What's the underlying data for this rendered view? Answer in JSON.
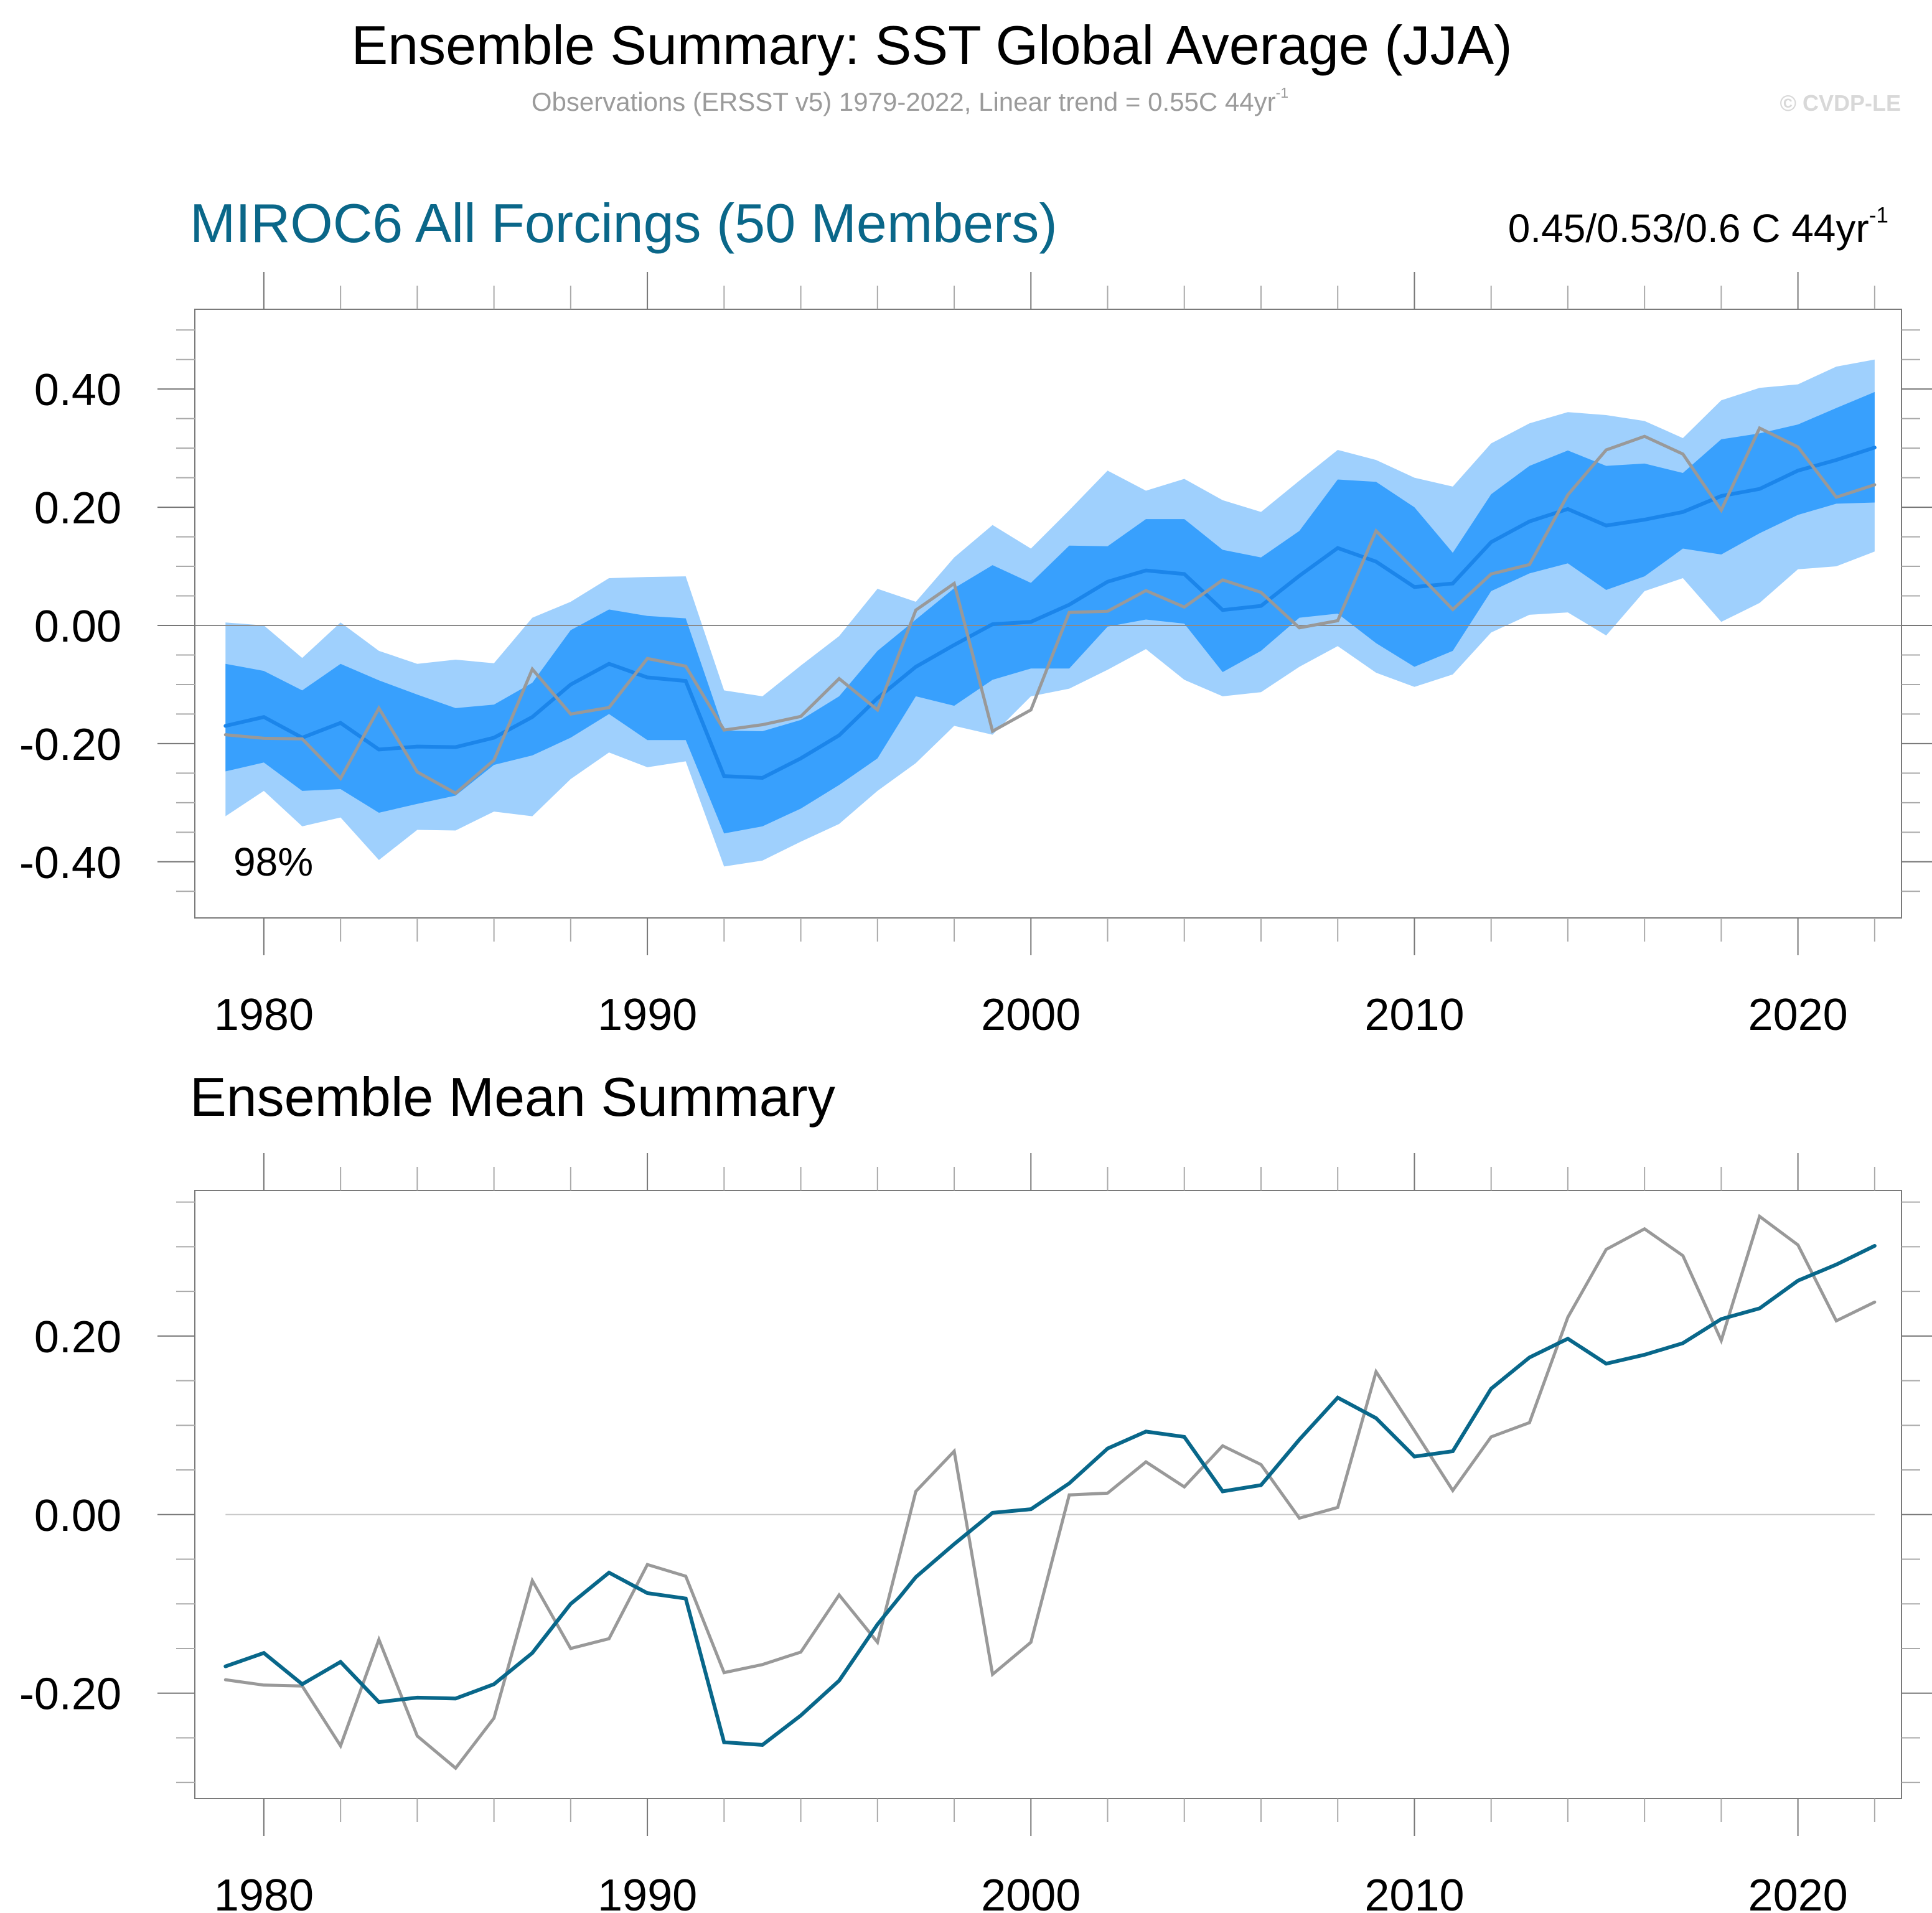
{
  "header": {
    "title": "Ensemble Summary: SST Global Average (JJA)",
    "subtitle": "Observations (ERSST v5) 1979-2022, Linear trend = 0.55C 44yr",
    "subtitle_superscript": "-1",
    "credit": "© CVDP-LE"
  },
  "colors": {
    "outer_band": "#9fd0fd",
    "inner_band": "#38a0fd",
    "ensemble_mean_top": "#1b85ea",
    "ensemble_mean_bottom": "#08678a",
    "observations": "#999999",
    "title_accent": "#0a6789",
    "zero_line": "#9a9a9a"
  },
  "chart_data": [
    {
      "type": "area",
      "title": "MIROC6 All Forcings (50 Members)",
      "trend_label": "0.45/0.53/0.6 C 44yr",
      "trend_superscript": "-1",
      "annotation": "98%",
      "xlabel": "",
      "ylabel": "",
      "xlim": [
        1978.2,
        2022.7
      ],
      "ylim": [
        -0.495,
        0.535
      ],
      "grid": false,
      "x_ticks": [
        1980,
        1990,
        2000,
        2010,
        2020
      ],
      "x_tick_labels": [
        "1980",
        "1990",
        "2000",
        "2010",
        "2020"
      ],
      "y_ticks": [
        -0.4,
        -0.2,
        0.0,
        0.2,
        0.4
      ],
      "y_tick_labels": [
        "-0.40",
        "-0.20",
        "0.00",
        "0.20",
        "0.40"
      ],
      "x": [
        1979,
        1980,
        1981,
        1982,
        1983,
        1984,
        1985,
        1986,
        1987,
        1988,
        1989,
        1990,
        1991,
        1992,
        1993,
        1994,
        1995,
        1996,
        1997,
        1998,
        1999,
        2000,
        2001,
        2002,
        2003,
        2004,
        2005,
        2006,
        2007,
        2008,
        2009,
        2010,
        2011,
        2012,
        2013,
        2014,
        2015,
        2016,
        2017,
        2018,
        2019,
        2020,
        2021,
        2022
      ],
      "bands": [
        {
          "name": "outer range",
          "upper": [
            0.005,
            0.0,
            -0.055,
            0.005,
            -0.043,
            -0.065,
            -0.058,
            -0.064,
            0.013,
            0.04,
            0.08,
            0.082,
            0.083,
            -0.11,
            -0.12,
            -0.068,
            -0.018,
            0.062,
            0.04,
            0.115,
            0.17,
            0.13,
            0.195,
            0.262,
            0.228,
            0.248,
            0.212,
            0.192,
            0.245,
            0.297,
            0.28,
            0.25,
            0.235,
            0.308,
            0.342,
            0.361,
            0.356,
            0.346,
            0.317,
            0.381,
            0.402,
            0.408,
            0.438,
            0.45
          ],
          "lower": [
            -0.323,
            -0.28,
            -0.34,
            -0.325,
            -0.397,
            -0.346,
            -0.347,
            -0.315,
            -0.323,
            -0.26,
            -0.215,
            -0.24,
            -0.23,
            -0.408,
            -0.398,
            -0.366,
            -0.336,
            -0.28,
            -0.233,
            -0.17,
            -0.185,
            -0.12,
            -0.107,
            -0.075,
            -0.04,
            -0.092,
            -0.12,
            -0.113,
            -0.07,
            -0.035,
            -0.08,
            -0.104,
            -0.083,
            -0.012,
            0.018,
            0.022,
            -0.017,
            0.058,
            0.08,
            0.006,
            0.038,
            0.095,
            0.1,
            0.125
          ]
        },
        {
          "name": "inner range",
          "upper": [
            -0.065,
            -0.077,
            -0.11,
            -0.065,
            -0.093,
            -0.117,
            -0.14,
            -0.134,
            -0.097,
            -0.008,
            0.027,
            0.016,
            0.012,
            -0.178,
            -0.179,
            -0.16,
            -0.12,
            -0.043,
            0.01,
            0.063,
            0.102,
            0.072,
            0.135,
            0.134,
            0.18,
            0.18,
            0.128,
            0.115,
            0.16,
            0.247,
            0.243,
            0.2,
            0.123,
            0.222,
            0.27,
            0.296,
            0.27,
            0.274,
            0.258,
            0.315,
            0.325,
            0.34,
            0.368,
            0.395
          ],
          "lower": [
            -0.247,
            -0.232,
            -0.28,
            -0.277,
            -0.317,
            -0.302,
            -0.288,
            -0.236,
            -0.22,
            -0.19,
            -0.15,
            -0.194,
            -0.194,
            -0.352,
            -0.34,
            -0.31,
            -0.27,
            -0.225,
            -0.12,
            -0.136,
            -0.092,
            -0.073,
            -0.073,
            -0.002,
            0.01,
            0.003,
            -0.079,
            -0.043,
            0.013,
            0.02,
            -0.03,
            -0.07,
            -0.043,
            0.058,
            0.088,
            0.105,
            0.06,
            0.083,
            0.13,
            0.12,
            0.156,
            0.187,
            0.206,
            0.208
          ]
        }
      ],
      "series": [
        {
          "name": "Ensemble mean",
          "values": [
            -0.17,
            -0.155,
            -0.19,
            -0.165,
            -0.21,
            -0.205,
            -0.206,
            -0.19,
            -0.155,
            -0.1,
            -0.065,
            -0.088,
            -0.094,
            -0.255,
            -0.258,
            -0.225,
            -0.186,
            -0.123,
            -0.07,
            -0.033,
            0.002,
            0.006,
            0.035,
            0.074,
            0.093,
            0.087,
            0.026,
            0.033,
            0.084,
            0.131,
            0.108,
            0.065,
            0.071,
            0.141,
            0.176,
            0.197,
            0.169,
            0.179,
            0.192,
            0.219,
            0.231,
            0.262,
            0.28,
            0.301
          ]
        },
        {
          "name": "Observations (ERSST v5)",
          "values": [
            -0.185,
            -0.191,
            -0.192,
            -0.259,
            -0.14,
            -0.248,
            -0.284,
            -0.228,
            -0.074,
            -0.15,
            -0.139,
            -0.056,
            -0.069,
            -0.177,
            -0.168,
            -0.154,
            -0.09,
            -0.143,
            0.026,
            0.071,
            -0.179,
            -0.143,
            0.022,
            0.024,
            0.059,
            0.031,
            0.077,
            0.056,
            -0.004,
            0.008,
            0.16,
            0.094,
            0.027,
            0.087,
            0.103,
            0.221,
            0.297,
            0.32,
            0.29,
            0.195,
            0.334,
            0.302,
            0.217,
            0.238
          ]
        }
      ]
    },
    {
      "type": "line",
      "title": "Ensemble Mean Summary",
      "xlabel": "",
      "ylabel": "",
      "xlim": [
        1978.2,
        2022.7
      ],
      "ylim": [
        -0.318,
        0.363
      ],
      "grid": false,
      "x_ticks": [
        1980,
        1990,
        2000,
        2010,
        2020
      ],
      "x_tick_labels": [
        "1980",
        "1990",
        "2000",
        "2010",
        "2020"
      ],
      "y_ticks": [
        -0.2,
        0.0,
        0.2
      ],
      "y_tick_labels": [
        "-0.20",
        "0.00",
        "0.20"
      ],
      "x": [
        1979,
        1980,
        1981,
        1982,
        1983,
        1984,
        1985,
        1986,
        1987,
        1988,
        1989,
        1990,
        1991,
        1992,
        1993,
        1994,
        1995,
        1996,
        1997,
        1998,
        1999,
        2000,
        2001,
        2002,
        2003,
        2004,
        2005,
        2006,
        2007,
        2008,
        2009,
        2010,
        2011,
        2012,
        2013,
        2014,
        2015,
        2016,
        2017,
        2018,
        2019,
        2020,
        2021,
        2022
      ],
      "series": [
        {
          "name": "Ensemble mean",
          "values": [
            -0.17,
            -0.155,
            -0.19,
            -0.165,
            -0.21,
            -0.205,
            -0.206,
            -0.19,
            -0.155,
            -0.1,
            -0.065,
            -0.088,
            -0.094,
            -0.255,
            -0.258,
            -0.225,
            -0.186,
            -0.123,
            -0.07,
            -0.033,
            0.002,
            0.006,
            0.035,
            0.074,
            0.093,
            0.087,
            0.026,
            0.033,
            0.084,
            0.131,
            0.108,
            0.065,
            0.071,
            0.141,
            0.176,
            0.197,
            0.169,
            0.179,
            0.192,
            0.219,
            0.231,
            0.262,
            0.28,
            0.301
          ]
        },
        {
          "name": "Observations (ERSST v5)",
          "values": [
            -0.185,
            -0.191,
            -0.192,
            -0.259,
            -0.14,
            -0.248,
            -0.284,
            -0.228,
            -0.074,
            -0.15,
            -0.139,
            -0.056,
            -0.069,
            -0.177,
            -0.168,
            -0.154,
            -0.09,
            -0.143,
            0.026,
            0.071,
            -0.179,
            -0.143,
            0.022,
            0.024,
            0.059,
            0.031,
            0.077,
            0.056,
            -0.004,
            0.008,
            0.16,
            0.094,
            0.027,
            0.087,
            0.103,
            0.221,
            0.297,
            0.32,
            0.29,
            0.195,
            0.334,
            0.302,
            0.217,
            0.238
          ]
        }
      ]
    }
  ]
}
